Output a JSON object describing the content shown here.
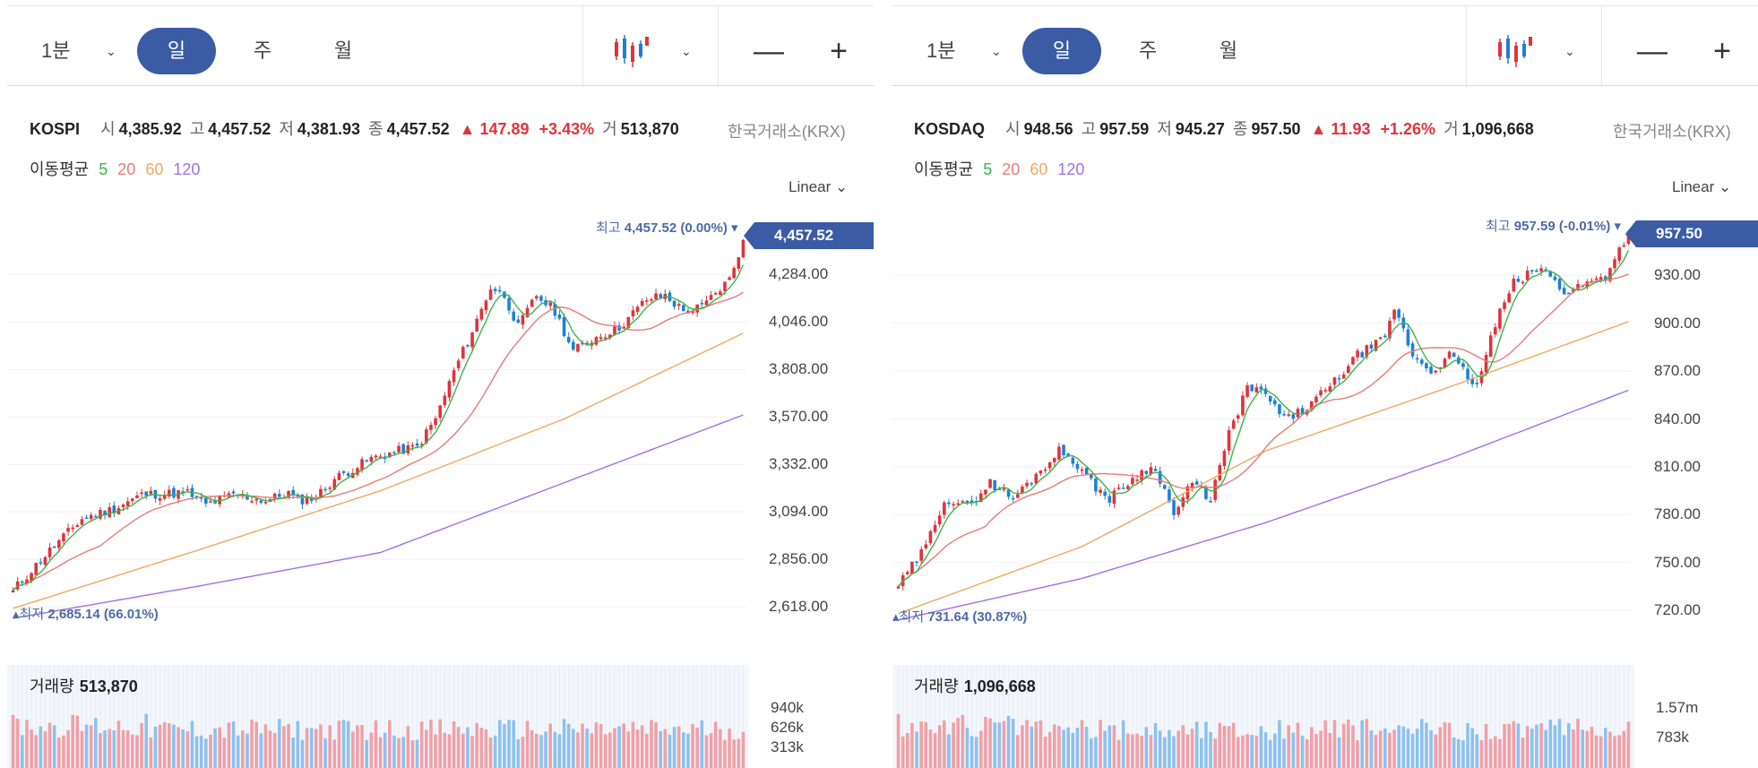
{
  "toolbar": {
    "interval_label": "1분",
    "day_label": "일",
    "week_label": "주",
    "month_label": "월",
    "zoom_out_label": "—",
    "zoom_in_label": "+"
  },
  "colors": {
    "accent": "#3b5ba5",
    "up": "#e0333a",
    "down": "#1e7fd6",
    "ma5": "#3cb44b",
    "ma20": "#e87a7a",
    "ma60": "#f0a860",
    "ma120": "#a070e8",
    "vol_up": "#f0a0a8",
    "vol_down": "#8ec0ee"
  },
  "legend": {
    "title": "이동평균",
    "ma5": "5",
    "ma20": "20",
    "ma60": "60",
    "ma120": "120"
  },
  "scale_label": "Linear",
  "chevron": "⌄",
  "chart_data": [
    {
      "type": "candlestick",
      "symbol": "KOSPI",
      "exchange": "한국거래소(KRX)",
      "quote": {
        "open_label": "시",
        "open": "4,385.92",
        "high_label": "고",
        "high": "4,457.52",
        "low_label": "저",
        "low": "4,381.93",
        "close_label": "종",
        "close": "4,457.52",
        "change": "▲ 147.89",
        "change_pct": "+3.43%",
        "volume_label": "거",
        "volume": "513,870"
      },
      "y_ticks": [
        "4,284.00",
        "4,046.00",
        "3,808.00",
        "3,570.00",
        "3,332.00",
        "3,094.00",
        "2,856.00",
        "2,618.00"
      ],
      "ylim": [
        2560,
        4560
      ],
      "last_price": "4,457.52",
      "high_label": "최고",
      "high_text": "4,457.52 (0.00%)",
      "low_label": "최저",
      "low_text": "2,685.14 (66.01%)",
      "start": 2700,
      "end": 4457.52,
      "low_val": 2685.14,
      "waypoints": [
        [
          0,
          2700
        ],
        [
          8,
          2900
        ],
        [
          15,
          3060
        ],
        [
          22,
          3110
        ],
        [
          28,
          3180
        ],
        [
          38,
          3190
        ],
        [
          42,
          3130
        ],
        [
          48,
          3180
        ],
        [
          55,
          3150
        ],
        [
          60,
          3190
        ],
        [
          62,
          3150
        ],
        [
          66,
          3170
        ],
        [
          70,
          3260
        ],
        [
          78,
          3360
        ],
        [
          84,
          3400
        ],
        [
          88,
          3420
        ],
        [
          92,
          3560
        ],
        [
          96,
          3800
        ],
        [
          100,
          4000
        ],
        [
          104,
          4220
        ],
        [
          107,
          4180
        ],
        [
          110,
          4020
        ],
        [
          114,
          4180
        ],
        [
          118,
          4100
        ],
        [
          122,
          3900
        ],
        [
          126,
          3960
        ],
        [
          132,
          4020
        ],
        [
          138,
          4160
        ],
        [
          142,
          4180
        ],
        [
          146,
          4100
        ],
        [
          150,
          4120
        ],
        [
          156,
          4260
        ],
        [
          159,
          4457.52
        ]
      ],
      "ma60_pts": [
        [
          0,
          2610
        ],
        [
          40,
          2900
        ],
        [
          80,
          3200
        ],
        [
          120,
          3560
        ],
        [
          159,
          3990
        ]
      ],
      "ma120_pts": [
        [
          0,
          2560
        ],
        [
          40,
          2720
        ],
        [
          80,
          2890
        ],
        [
          120,
          3240
        ],
        [
          159,
          3580
        ]
      ],
      "volume": {
        "title": "거래량",
        "value": "513,870",
        "ticks": [
          "940k",
          "626k",
          "313k"
        ],
        "max": 1250
      },
      "seed": 11
    },
    {
      "type": "candlestick",
      "symbol": "KOSDAQ",
      "exchange": "한국거래소(KRX)",
      "quote": {
        "open_label": "시",
        "open": "948.56",
        "high_label": "고",
        "high": "957.59",
        "low_label": "저",
        "low": "945.27",
        "close_label": "종",
        "close": "957.50",
        "change": "▲ 11.93",
        "change_pct": "+1.26%",
        "volume_label": "거",
        "volume": "1,096,668"
      },
      "y_ticks": [
        "930.00",
        "900.00",
        "870.00",
        "840.00",
        "810.00",
        "780.00",
        "750.00",
        "720.00"
      ],
      "ylim": [
        715,
        965
      ],
      "last_price": "957.50",
      "high_label": "최고",
      "high_text": "957.59 (-0.01%)",
      "low_label": "최저",
      "low_text": "731.64 (30.87%)",
      "start": 735,
      "end": 957.5,
      "low_val": 731.64,
      "waypoints": [
        [
          0,
          735
        ],
        [
          6,
          760
        ],
        [
          10,
          790
        ],
        [
          15,
          785
        ],
        [
          20,
          800
        ],
        [
          25,
          790
        ],
        [
          30,
          805
        ],
        [
          35,
          820
        ],
        [
          38,
          815
        ],
        [
          42,
          800
        ],
        [
          46,
          790
        ],
        [
          52,
          805
        ],
        [
          56,
          810
        ],
        [
          60,
          780
        ],
        [
          64,
          800
        ],
        [
          68,
          790
        ],
        [
          72,
          830
        ],
        [
          76,
          860
        ],
        [
          80,
          855
        ],
        [
          84,
          840
        ],
        [
          88,
          845
        ],
        [
          94,
          860
        ],
        [
          100,
          880
        ],
        [
          106,
          890
        ],
        [
          108,
          910
        ],
        [
          112,
          880
        ],
        [
          116,
          870
        ],
        [
          120,
          880
        ],
        [
          126,
          860
        ],
        [
          130,
          900
        ],
        [
          134,
          925
        ],
        [
          140,
          935
        ],
        [
          145,
          920
        ],
        [
          150,
          925
        ],
        [
          154,
          930
        ],
        [
          159,
          957.5
        ]
      ],
      "ma60_pts": [
        [
          0,
          718
        ],
        [
          40,
          760
        ],
        [
          80,
          820
        ],
        [
          120,
          860
        ],
        [
          159,
          901
        ]
      ],
      "ma120_pts": [
        [
          0,
          714
        ],
        [
          40,
          740
        ],
        [
          80,
          775
        ],
        [
          120,
          815
        ],
        [
          159,
          858
        ]
      ],
      "volume": {
        "title": "거래량",
        "value": "1,096,668",
        "ticks": [
          "1.57m",
          "783k"
        ],
        "max": 2400
      },
      "seed": 29
    }
  ]
}
